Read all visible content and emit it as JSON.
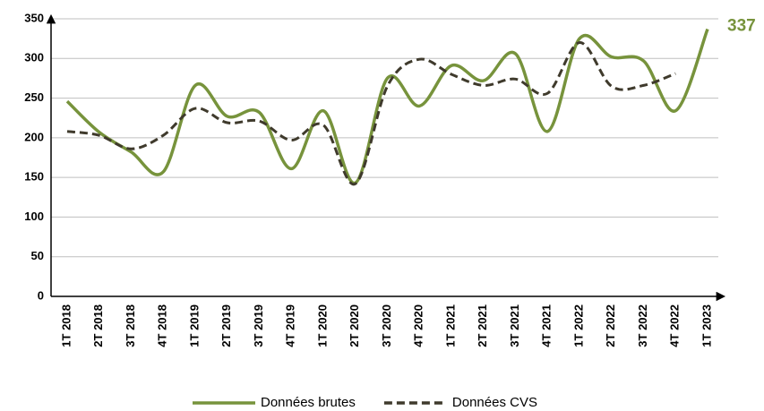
{
  "chart_data": {
    "type": "line",
    "categories": [
      "1T 2018",
      "2T 2018",
      "3T 2018",
      "4T 2018",
      "1T 2019",
      "2T 2019",
      "3T 2019",
      "4T 2019",
      "1T 2020",
      "2T 2020",
      "3T 2020",
      "4T 2020",
      "1T 2021",
      "2T 2021",
      "3T 2021",
      "4T 2021",
      "1T 2022",
      "2T 2022",
      "3T 2022",
      "4T 2022",
      "1T 2023"
    ],
    "series": [
      {
        "name": "Données brutes",
        "color": "#77933c",
        "dash": false,
        "values": [
          246,
          207,
          182,
          157,
          266,
          227,
          232,
          161,
          234,
          143,
          275,
          240,
          291,
          272,
          306,
          208,
          325,
          302,
          297,
          234,
          337
        ]
      },
      {
        "name": "Données CVS",
        "color": "#3f3a2c",
        "dash": true,
        "values": [
          208,
          203,
          186,
          203,
          237,
          219,
          221,
          197,
          216,
          142,
          265,
          299,
          280,
          266,
          274,
          256,
          320,
          265,
          266,
          281,
          null
        ]
      }
    ],
    "ylim": [
      0,
      350
    ],
    "yticks": [
      0,
      50,
      100,
      150,
      200,
      250,
      300,
      350
    ],
    "grid": true,
    "legend": "bottom"
  }
}
